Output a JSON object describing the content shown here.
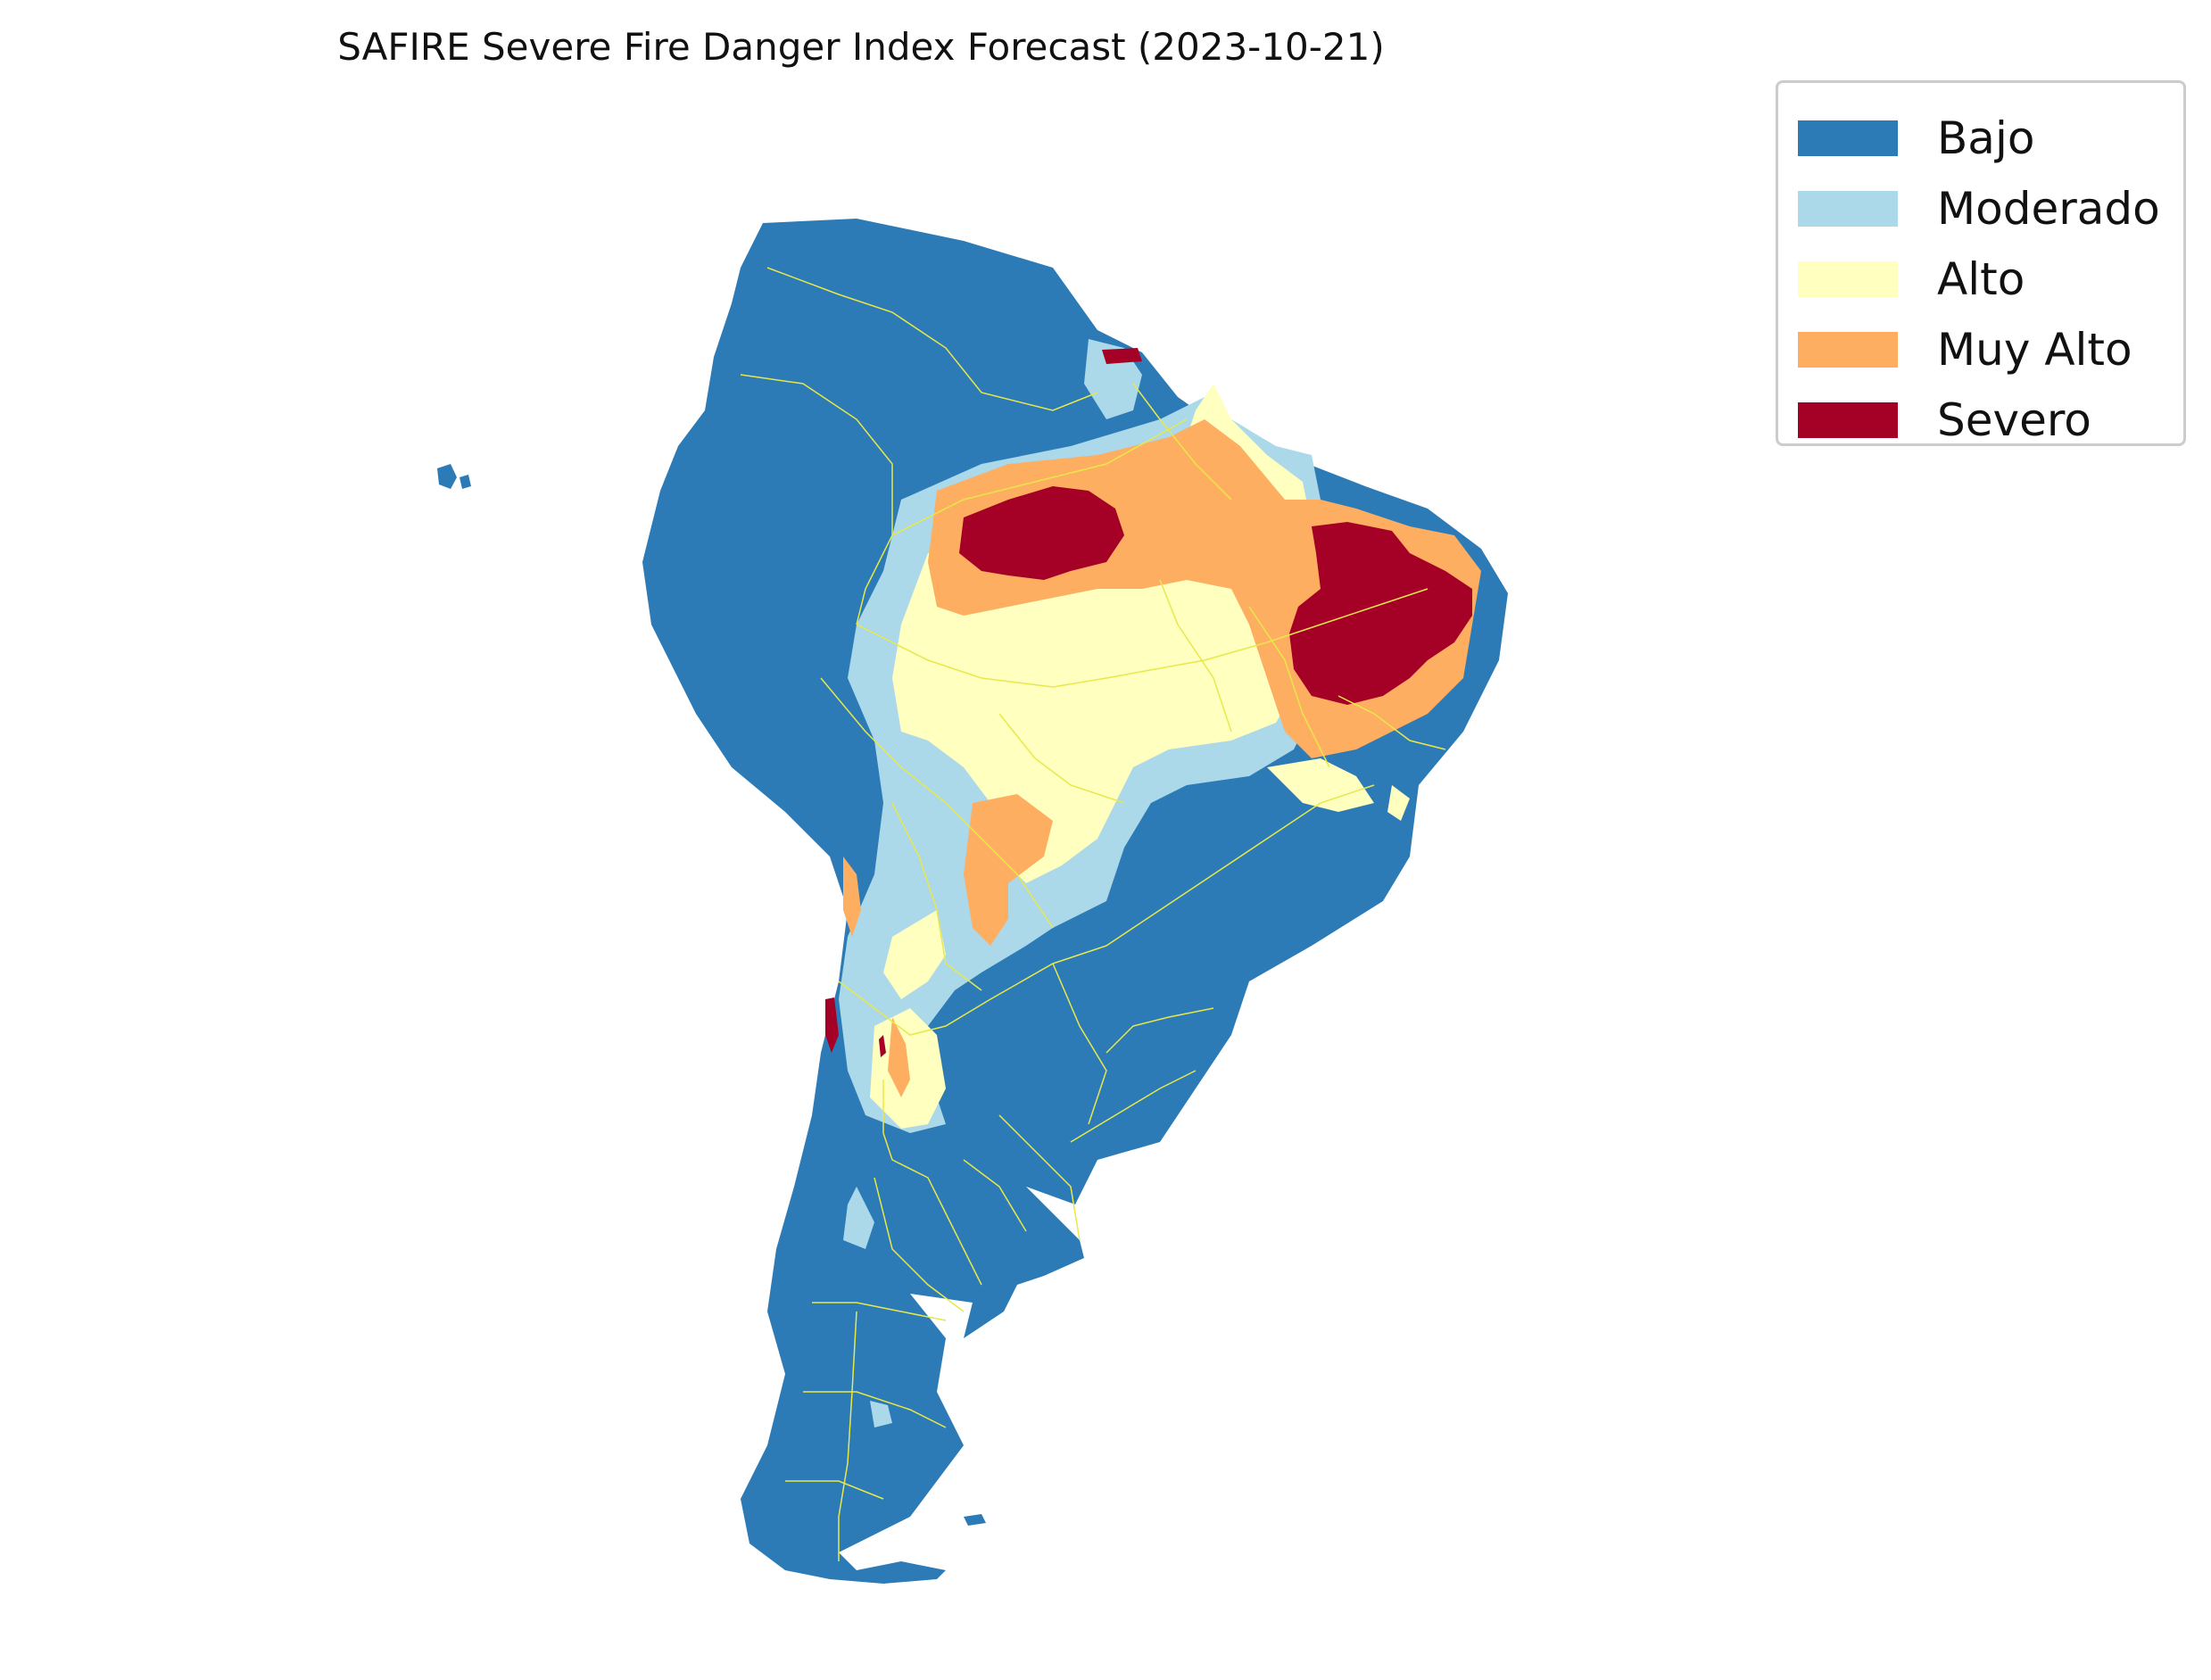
{
  "title": "SAFIRE Severe Fire Danger Index Forecast (2023-10-21)",
  "legend": {
    "items": [
      {
        "label": "Bajo",
        "color": "#2c7bb6"
      },
      {
        "label": "Moderado",
        "color": "#abd9e9"
      },
      {
        "label": "Alto",
        "color": "#ffffbf"
      },
      {
        "label": "Muy Alto",
        "color": "#fdae61"
      },
      {
        "label": "Severo",
        "color": "#a50026"
      }
    ]
  },
  "colors": {
    "borders": "#e8e84a"
  }
}
